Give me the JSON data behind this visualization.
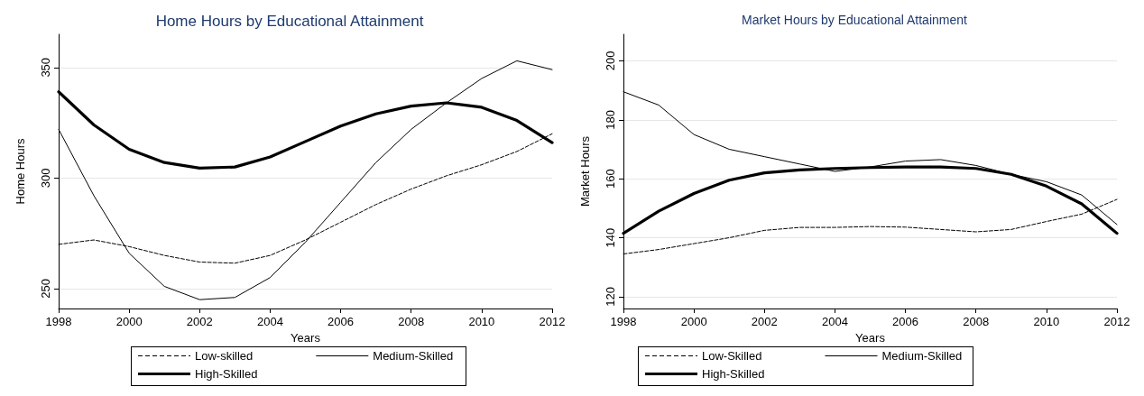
{
  "chart_data": [
    {
      "type": "line",
      "title": "Home Hours by Educational Attainment",
      "xlabel": "Years",
      "ylabel": "Home Hours",
      "x": [
        1998,
        1999,
        2000,
        2001,
        2002,
        2003,
        2004,
        2005,
        2006,
        2007,
        2008,
        2009,
        2010,
        2011,
        2012
      ],
      "series": [
        {
          "name": "Low-skilled",
          "color": "#000000",
          "line_style": "dashed",
          "values": [
            270,
            272,
            269,
            265,
            262,
            261.5,
            265,
            272,
            280,
            288,
            295,
            301,
            306,
            312,
            320
          ]
        },
        {
          "name": "Medium-Skilled",
          "color": "#000000",
          "line_style": "solid",
          "values": [
            322,
            292,
            266,
            251,
            245,
            246,
            255,
            271,
            289,
            307,
            322,
            334,
            345,
            353,
            349
          ]
        },
        {
          "name": "High-Skilled",
          "color": "#000000",
          "line_style": "solid",
          "values": [
            339,
            324,
            313,
            307,
            304.5,
            305,
            309.5,
            316.5,
            323.5,
            329,
            332.5,
            334,
            332,
            326,
            316
          ]
        }
      ],
      "xlim": [
        1998,
        2012
      ],
      "xticks": [
        1998,
        2000,
        2002,
        2004,
        2006,
        2008,
        2010,
        2012
      ],
      "ylim": [
        241,
        365
      ],
      "yticks": [
        250,
        300,
        350
      ],
      "grid": "y",
      "legend": "bottom",
      "marker": "none"
    },
    {
      "type": "line",
      "title": "Market Hours by Educational Attainment",
      "xlabel": "Years",
      "ylabel": "Market Hours",
      "x": [
        1998,
        1999,
        2000,
        2001,
        2002,
        2003,
        2004,
        2005,
        2006,
        2007,
        2008,
        2009,
        2010,
        2011,
        2012
      ],
      "series": [
        {
          "name": "Low-Skilled",
          "color": "#000000",
          "line_style": "dashed",
          "values": [
            134.5,
            136,
            138,
            140,
            142.5,
            143.5,
            143.5,
            143.8,
            143.6,
            142.8,
            142,
            142.8,
            145.5,
            148,
            153
          ]
        },
        {
          "name": "Medium-Skilled",
          "color": "#000000",
          "line_style": "solid",
          "values": [
            189.5,
            185,
            175,
            170,
            167.5,
            165,
            162.5,
            164,
            166,
            166.5,
            164.5,
            161.5,
            159,
            154.5,
            144.5
          ]
        },
        {
          "name": "High-Skilled",
          "color": "#000000",
          "line_style": "solid",
          "values": [
            141.5,
            149,
            155,
            159.5,
            162,
            163,
            163.5,
            163.8,
            164,
            164,
            163.5,
            161.5,
            157.5,
            151.5,
            141.5
          ]
        }
      ],
      "xlim": [
        1998,
        2012
      ],
      "xticks": [
        1998,
        2000,
        2002,
        2004,
        2006,
        2008,
        2010,
        2012
      ],
      "ylim": [
        116,
        209
      ],
      "yticks": [
        120,
        140,
        160,
        180,
        200
      ],
      "grid": "y",
      "legend": "bottom",
      "marker": "none"
    }
  ]
}
